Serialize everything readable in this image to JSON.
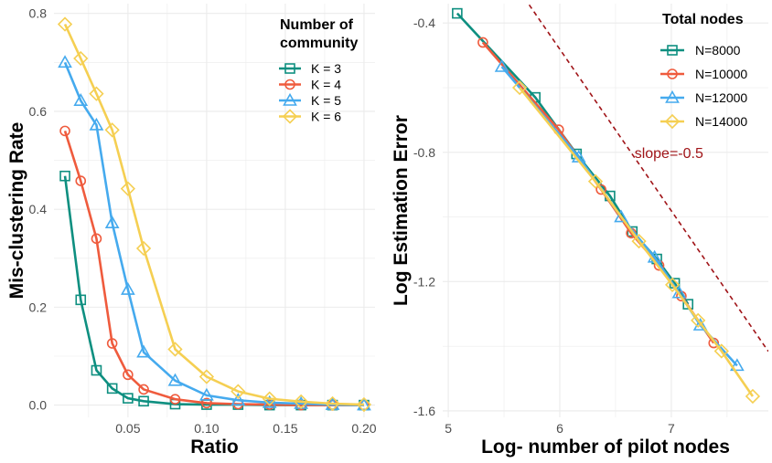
{
  "chart_data": [
    {
      "type": "line",
      "xlabel": "Ratio",
      "ylabel": "Mis-clustering Rate",
      "xlim": [
        0.003,
        0.207
      ],
      "ylim": [
        -0.025,
        0.82
      ],
      "xticks": [
        0.05,
        0.1,
        0.15,
        0.2
      ],
      "xtick_labels": [
        "0.05",
        "0.10",
        "0.15",
        "0.20"
      ],
      "yticks": [
        0.0,
        0.2,
        0.4,
        0.6,
        0.8
      ],
      "ytick_labels": [
        "0.0",
        "0.2",
        "0.4",
        "0.6",
        "0.8"
      ],
      "grid": true,
      "legend": {
        "title_lines": [
          "Number of",
          "community"
        ],
        "position": "top-right"
      },
      "series": [
        {
          "name": "K = 3",
          "color": "#0e8f80",
          "marker": "square",
          "x": [
            0.01,
            0.02,
            0.03,
            0.04,
            0.05,
            0.06,
            0.08,
            0.1,
            0.12,
            0.14,
            0.16,
            0.18,
            0.2
          ],
          "y": [
            0.468,
            0.215,
            0.071,
            0.034,
            0.014,
            0.008,
            0.002,
            0.001,
            0.001,
            0.0,
            0.0,
            0.0,
            0.0
          ]
        },
        {
          "name": "K = 4",
          "color": "#ef5b3d",
          "marker": "circle",
          "x": [
            0.01,
            0.02,
            0.03,
            0.04,
            0.05,
            0.06,
            0.08,
            0.1,
            0.12,
            0.14,
            0.16,
            0.18,
            0.2
          ],
          "y": [
            0.56,
            0.458,
            0.34,
            0.126,
            0.062,
            0.032,
            0.012,
            0.004,
            0.002,
            0.001,
            0.0,
            0.0,
            0.0
          ]
        },
        {
          "name": "K = 5",
          "color": "#45aaee",
          "marker": "triangle",
          "x": [
            0.01,
            0.02,
            0.03,
            0.04,
            0.05,
            0.06,
            0.08,
            0.1,
            0.12,
            0.14,
            0.16,
            0.18,
            0.2
          ],
          "y": [
            0.7,
            0.622,
            0.572,
            0.372,
            0.236,
            0.108,
            0.05,
            0.02,
            0.01,
            0.005,
            0.003,
            0.001,
            0.0
          ]
        },
        {
          "name": "K = 6",
          "color": "#f5cf52",
          "marker": "diamond",
          "x": [
            0.01,
            0.02,
            0.03,
            0.04,
            0.05,
            0.06,
            0.08,
            0.1,
            0.12,
            0.14,
            0.16,
            0.18,
            0.2
          ],
          "y": [
            0.778,
            0.708,
            0.636,
            0.562,
            0.442,
            0.32,
            0.114,
            0.058,
            0.028,
            0.013,
            0.007,
            0.003,
            0.001
          ]
        }
      ]
    },
    {
      "type": "line",
      "xlabel": "Log- number of pilot nodes",
      "ylabel": "Log Estimation Error",
      "xlim": [
        4.95,
        7.87
      ],
      "ylim": [
        -1.62,
        -0.34
      ],
      "xticks": [
        5,
        6,
        7
      ],
      "xtick_labels": [
        "5",
        "6",
        "7"
      ],
      "yticks": [
        -0.4,
        -0.8,
        -1.2,
        -1.6
      ],
      "ytick_labels": [
        "-0.4",
        "-0.8",
        "-1.2",
        "-1.6"
      ],
      "grid": true,
      "legend": {
        "title_lines": [
          "Total nodes"
        ],
        "position": "top-right"
      },
      "reference_line": {
        "label": "slope=-0.5",
        "color": "#a01418",
        "x": [
          5.6,
          7.87
        ],
        "y": [
          -0.281,
          -1.416
        ]
      },
      "series": [
        {
          "name": "N=8000",
          "color": "#0e8f80",
          "marker": "square",
          "x": [
            5.08,
            5.78,
            6.15,
            6.45,
            6.65,
            6.87,
            7.03,
            7.15
          ],
          "y": [
            -0.37,
            -0.63,
            -0.805,
            -0.935,
            -1.045,
            -1.13,
            -1.205,
            -1.27
          ]
        },
        {
          "name": "N=10000",
          "color": "#ef5b3d",
          "marker": "circle",
          "x": [
            5.31,
            5.99,
            6.37,
            6.64,
            6.89,
            7.09,
            7.38
          ],
          "y": [
            -0.46,
            -0.73,
            -0.915,
            -1.05,
            -1.15,
            -1.245,
            -1.39
          ]
        },
        {
          "name": "N=12000",
          "color": "#45aaee",
          "marker": "triangle",
          "x": [
            5.48,
            6.17,
            6.55,
            6.85,
            7.07,
            7.26,
            7.59
          ],
          "y": [
            -0.535,
            -0.815,
            -1.0,
            -1.125,
            -1.235,
            -1.335,
            -1.46
          ]
        },
        {
          "name": "N=14000",
          "color": "#f5cf52",
          "marker": "diamond",
          "x": [
            5.64,
            6.32,
            6.71,
            7.01,
            7.24,
            7.45,
            7.73
          ],
          "y": [
            -0.6,
            -0.89,
            -1.075,
            -1.21,
            -1.32,
            -1.415,
            -1.555
          ]
        }
      ]
    }
  ]
}
